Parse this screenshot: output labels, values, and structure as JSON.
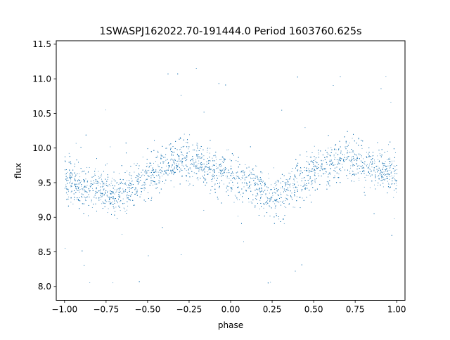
{
  "chart_data": {
    "type": "scatter",
    "title": "1SWASPJ162022.70-191444.0 Period 1603760.625s",
    "xlabel": "phase",
    "ylabel": "flux",
    "xlim": [
      -1.05,
      1.05
    ],
    "ylim": [
      7.8,
      11.55
    ],
    "xticks": [
      -1.0,
      -0.75,
      -0.5,
      -0.25,
      0.0,
      0.25,
      0.5,
      0.75,
      1.0
    ],
    "xtick_labels": [
      "−1.00",
      "−0.75",
      "−0.50",
      "−0.25",
      "0.00",
      "0.25",
      "0.50",
      "0.75",
      "1.00"
    ],
    "yticks": [
      8.0,
      8.5,
      9.0,
      9.5,
      10.0,
      10.5,
      11.0,
      11.5
    ],
    "ytick_labels": [
      "8.0",
      "8.5",
      "9.0",
      "9.5",
      "10.0",
      "10.5",
      "11.0",
      "11.5"
    ],
    "grid": false,
    "marker_color": "#1f77b4",
    "series": [
      {
        "x_range": [
          -1.0,
          1.0
        ],
        "envelope_phase": [
          -1.0,
          -0.9,
          -0.8,
          -0.7,
          -0.6,
          -0.5,
          -0.4,
          -0.3,
          -0.2,
          -0.1,
          0.0,
          0.1,
          0.2,
          0.3,
          0.4,
          0.5,
          0.6,
          0.7,
          0.8,
          0.9,
          1.0
        ],
        "envelope_median_flux": [
          9.6,
          9.45,
          9.4,
          9.3,
          9.45,
          9.6,
          9.75,
          9.85,
          9.8,
          9.65,
          9.6,
          9.5,
          9.35,
          9.3,
          9.55,
          9.7,
          9.8,
          9.85,
          9.8,
          9.7,
          9.6
        ],
        "flux_min": 7.97,
        "flux_max": 11.37
      }
    ]
  }
}
